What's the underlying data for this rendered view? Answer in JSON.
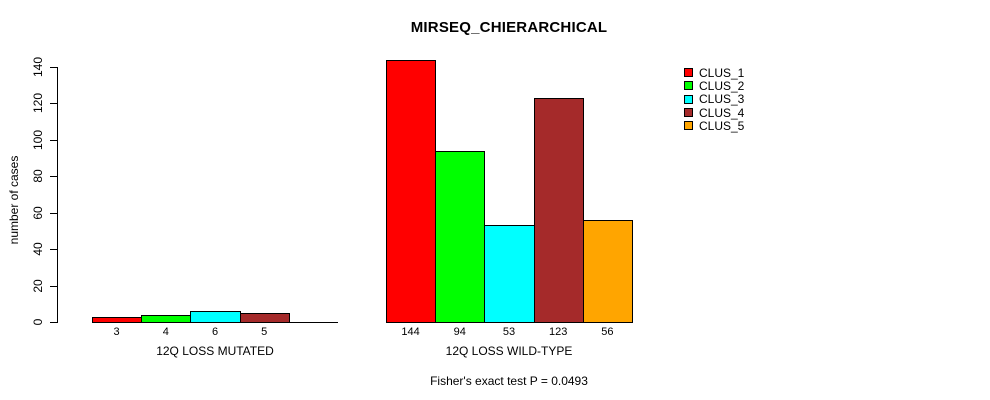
{
  "chart_data": {
    "type": "bar",
    "title": "MIRSEQ_CHIERARCHICAL",
    "ylabel": "number of cases",
    "xlabel": "",
    "ylim": [
      0,
      140
    ],
    "yticks": [
      0,
      20,
      40,
      60,
      80,
      100,
      120,
      140
    ],
    "grid": false,
    "legend_position": "top-right",
    "series": [
      {
        "name": "CLUS_1",
        "color": "#FF0000"
      },
      {
        "name": "CLUS_2",
        "color": "#00FF00"
      },
      {
        "name": "CLUS_3",
        "color": "#00FFFF"
      },
      {
        "name": "CLUS_4",
        "color": "#A52A2A"
      },
      {
        "name": "CLUS_5",
        "color": "#FFA500"
      }
    ],
    "groups": [
      {
        "label": "12Q LOSS MUTATED",
        "values": [
          3,
          4,
          6,
          5,
          0
        ],
        "bar_labels": [
          "3",
          "4",
          "6",
          "5",
          ""
        ]
      },
      {
        "label": "12Q LOSS WILD-TYPE",
        "values": [
          144,
          94,
          53,
          123,
          56
        ],
        "bar_labels": [
          "144",
          "94",
          "53",
          "123",
          "56"
        ]
      }
    ],
    "annotation": "Fisher's exact test P = 0.0493"
  }
}
